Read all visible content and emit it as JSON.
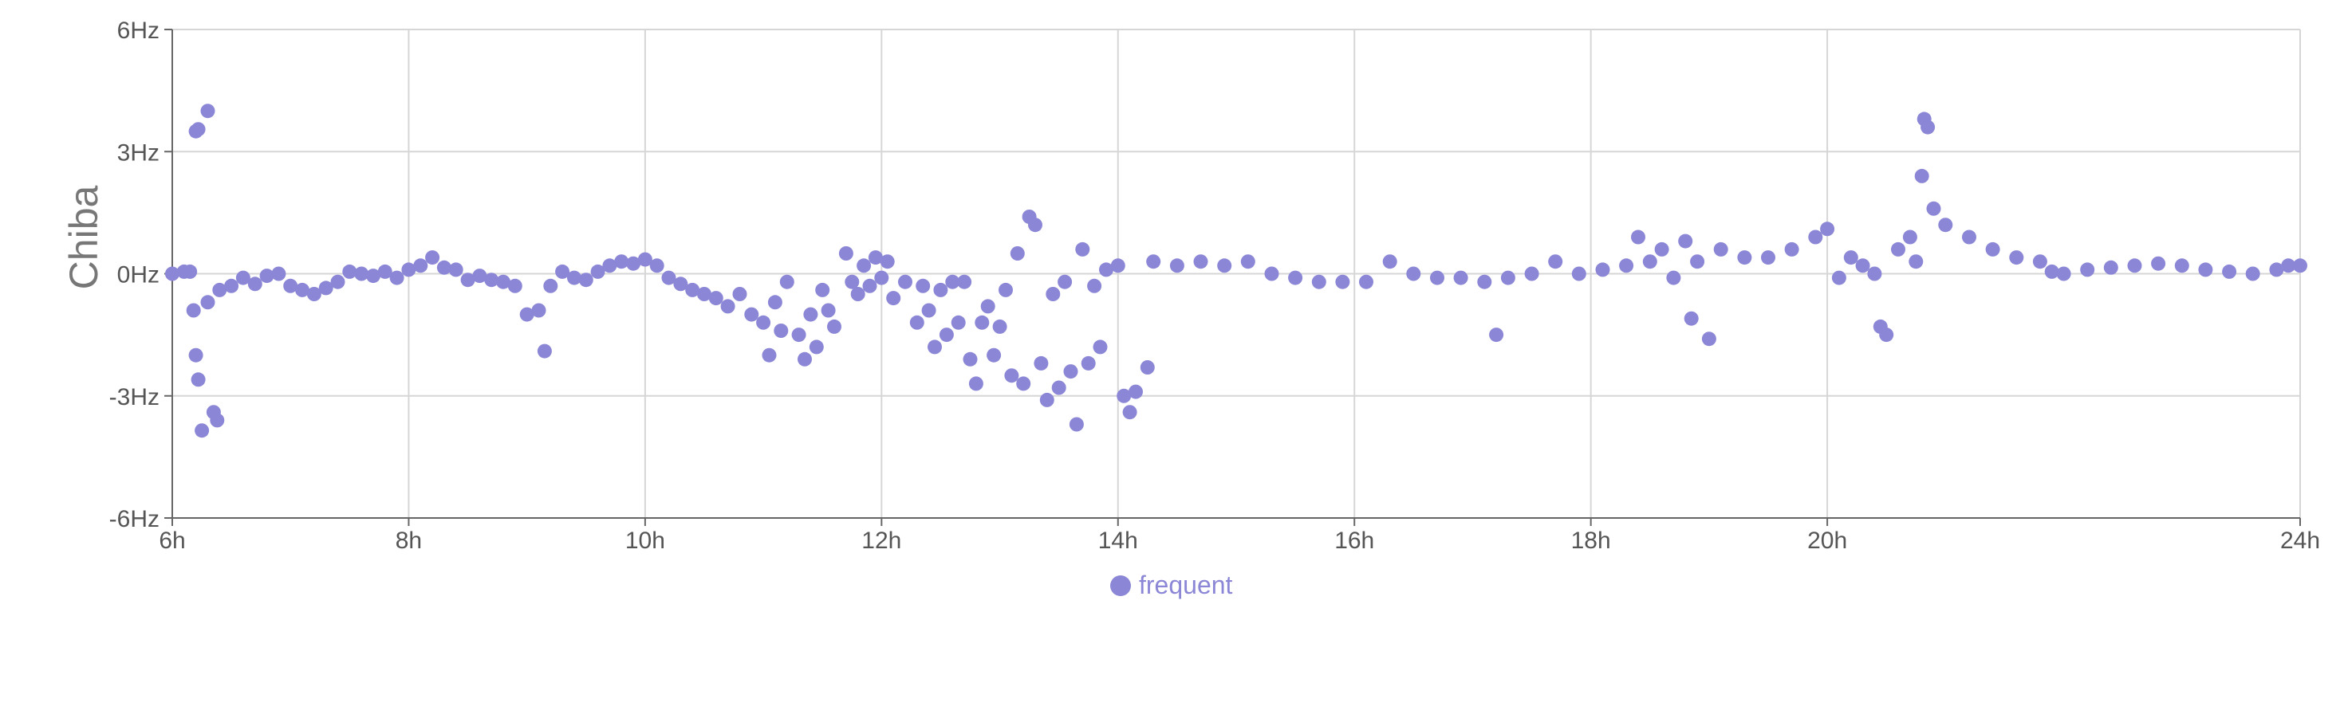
{
  "chart_data": {
    "type": "scatter",
    "title": "",
    "xlabel": "",
    "ylabel": "Chiba",
    "x_unit": "h",
    "y_unit": "Hz",
    "xlim": [
      6,
      24
    ],
    "ylim": [
      -6,
      6
    ],
    "x_ticks": [
      "6h",
      "8h",
      "10h",
      "12h",
      "14h",
      "16h",
      "18h",
      "20h",
      "24h"
    ],
    "y_ticks": [
      "6Hz",
      "3Hz",
      "0Hz",
      "-3Hz",
      "-6Hz"
    ],
    "grid": true,
    "legend_position": "bottom-center",
    "series": [
      {
        "name": "frequent",
        "color": "#8b87d6",
        "points": [
          [
            6.0,
            0.0
          ],
          [
            6.1,
            0.05
          ],
          [
            6.15,
            0.05
          ],
          [
            6.18,
            -0.9
          ],
          [
            6.2,
            -2.0
          ],
          [
            6.22,
            -2.6
          ],
          [
            6.25,
            -3.85
          ],
          [
            6.2,
            3.5
          ],
          [
            6.22,
            3.55
          ],
          [
            6.3,
            4.0
          ],
          [
            6.35,
            -3.4
          ],
          [
            6.38,
            -3.6
          ],
          [
            6.3,
            -0.7
          ],
          [
            6.4,
            -0.4
          ],
          [
            6.5,
            -0.3
          ],
          [
            6.6,
            -0.1
          ],
          [
            6.7,
            -0.25
          ],
          [
            6.8,
            -0.05
          ],
          [
            6.9,
            0.0
          ],
          [
            7.0,
            -0.3
          ],
          [
            7.1,
            -0.4
          ],
          [
            7.2,
            -0.5
          ],
          [
            7.3,
            -0.35
          ],
          [
            7.4,
            -0.2
          ],
          [
            7.5,
            0.05
          ],
          [
            7.6,
            0.0
          ],
          [
            7.7,
            -0.05
          ],
          [
            7.8,
            0.05
          ],
          [
            7.9,
            -0.1
          ],
          [
            8.0,
            0.1
          ],
          [
            8.1,
            0.2
          ],
          [
            8.2,
            0.4
          ],
          [
            8.3,
            0.15
          ],
          [
            8.4,
            0.1
          ],
          [
            8.5,
            -0.15
          ],
          [
            8.6,
            -0.05
          ],
          [
            8.7,
            -0.15
          ],
          [
            8.8,
            -0.2
          ],
          [
            8.9,
            -0.3
          ],
          [
            9.0,
            -1.0
          ],
          [
            9.1,
            -0.9
          ],
          [
            9.15,
            -1.9
          ],
          [
            9.2,
            -0.3
          ],
          [
            9.3,
            0.05
          ],
          [
            9.4,
            -0.1
          ],
          [
            9.5,
            -0.15
          ],
          [
            9.6,
            0.05
          ],
          [
            9.7,
            0.2
          ],
          [
            9.8,
            0.3
          ],
          [
            9.9,
            0.25
          ],
          [
            10.0,
            0.35
          ],
          [
            10.1,
            0.2
          ],
          [
            10.2,
            -0.1
          ],
          [
            10.3,
            -0.25
          ],
          [
            10.4,
            -0.4
          ],
          [
            10.5,
            -0.5
          ],
          [
            10.6,
            -0.6
          ],
          [
            10.7,
            -0.8
          ],
          [
            10.8,
            -0.5
          ],
          [
            10.9,
            -1.0
          ],
          [
            11.0,
            -1.2
          ],
          [
            11.05,
            -2.0
          ],
          [
            11.1,
            -0.7
          ],
          [
            11.15,
            -1.4
          ],
          [
            11.2,
            -0.2
          ],
          [
            11.3,
            -1.5
          ],
          [
            11.35,
            -2.1
          ],
          [
            11.4,
            -1.0
          ],
          [
            11.45,
            -1.8
          ],
          [
            11.5,
            -0.4
          ],
          [
            11.55,
            -0.9
          ],
          [
            11.6,
            -1.3
          ],
          [
            11.7,
            0.5
          ],
          [
            11.75,
            -0.2
          ],
          [
            11.8,
            -0.5
          ],
          [
            11.85,
            0.2
          ],
          [
            11.9,
            -0.3
          ],
          [
            11.95,
            0.4
          ],
          [
            12.0,
            -0.1
          ],
          [
            12.05,
            0.3
          ],
          [
            12.1,
            -0.6
          ],
          [
            12.2,
            -0.2
          ],
          [
            12.3,
            -1.2
          ],
          [
            12.35,
            -0.3
          ],
          [
            12.4,
            -0.9
          ],
          [
            12.45,
            -1.8
          ],
          [
            12.5,
            -0.4
          ],
          [
            12.55,
            -1.5
          ],
          [
            12.6,
            -0.2
          ],
          [
            12.65,
            -1.2
          ],
          [
            12.7,
            -0.2
          ],
          [
            12.75,
            -2.1
          ],
          [
            12.8,
            -2.7
          ],
          [
            12.85,
            -1.2
          ],
          [
            12.9,
            -0.8
          ],
          [
            12.95,
            -2.0
          ],
          [
            13.0,
            -1.3
          ],
          [
            13.05,
            -0.4
          ],
          [
            13.1,
            -2.5
          ],
          [
            13.15,
            0.5
          ],
          [
            13.2,
            -2.7
          ],
          [
            13.25,
            1.4
          ],
          [
            13.3,
            1.2
          ],
          [
            13.35,
            -2.2
          ],
          [
            13.4,
            -3.1
          ],
          [
            13.45,
            -0.5
          ],
          [
            13.5,
            -2.8
          ],
          [
            13.55,
            -0.2
          ],
          [
            13.6,
            -2.4
          ],
          [
            13.65,
            -3.7
          ],
          [
            13.7,
            0.6
          ],
          [
            13.75,
            -2.2
          ],
          [
            13.8,
            -0.3
          ],
          [
            13.85,
            -1.8
          ],
          [
            13.9,
            0.1
          ],
          [
            14.0,
            0.2
          ],
          [
            14.05,
            -3.0
          ],
          [
            14.1,
            -3.4
          ],
          [
            14.15,
            -2.9
          ],
          [
            14.25,
            -2.3
          ],
          [
            14.3,
            0.3
          ],
          [
            14.5,
            0.2
          ],
          [
            14.7,
            0.3
          ],
          [
            14.9,
            0.2
          ],
          [
            15.1,
            0.3
          ],
          [
            15.3,
            0.0
          ],
          [
            15.5,
            -0.1
          ],
          [
            15.7,
            -0.2
          ],
          [
            15.9,
            -0.2
          ],
          [
            16.1,
            -0.2
          ],
          [
            16.3,
            0.3
          ],
          [
            16.5,
            0.0
          ],
          [
            16.7,
            -0.1
          ],
          [
            16.9,
            -0.1
          ],
          [
            17.1,
            -0.2
          ],
          [
            17.2,
            -1.5
          ],
          [
            17.3,
            -0.1
          ],
          [
            17.5,
            0.0
          ],
          [
            17.7,
            0.3
          ],
          [
            17.9,
            0.0
          ],
          [
            18.1,
            0.1
          ],
          [
            18.3,
            0.2
          ],
          [
            18.4,
            0.9
          ],
          [
            18.5,
            0.3
          ],
          [
            18.6,
            0.6
          ],
          [
            18.7,
            -0.1
          ],
          [
            18.8,
            0.8
          ],
          [
            18.85,
            -1.1
          ],
          [
            18.9,
            0.3
          ],
          [
            19.0,
            -1.6
          ],
          [
            19.1,
            0.6
          ],
          [
            19.3,
            0.4
          ],
          [
            19.5,
            0.4
          ],
          [
            19.7,
            0.6
          ],
          [
            19.9,
            0.9
          ],
          [
            20.0,
            1.1
          ],
          [
            20.1,
            -0.1
          ],
          [
            20.2,
            0.4
          ],
          [
            20.3,
            0.2
          ],
          [
            20.4,
            0.0
          ],
          [
            20.45,
            -1.3
          ],
          [
            20.5,
            -1.5
          ],
          [
            20.6,
            0.6
          ],
          [
            20.7,
            0.9
          ],
          [
            20.75,
            0.3
          ],
          [
            20.8,
            2.4
          ],
          [
            20.82,
            3.8
          ],
          [
            20.85,
            3.6
          ],
          [
            20.9,
            1.6
          ],
          [
            21.0,
            1.2
          ],
          [
            21.2,
            0.9
          ],
          [
            21.4,
            0.6
          ],
          [
            21.6,
            0.4
          ],
          [
            21.8,
            0.3
          ],
          [
            21.9,
            0.05
          ],
          [
            22.0,
            0.0
          ],
          [
            22.2,
            0.1
          ],
          [
            22.4,
            0.15
          ],
          [
            22.6,
            0.2
          ],
          [
            22.8,
            0.25
          ],
          [
            23.0,
            0.2
          ],
          [
            23.2,
            0.1
          ],
          [
            23.4,
            0.05
          ],
          [
            23.6,
            0.0
          ],
          [
            23.8,
            0.1
          ],
          [
            23.9,
            0.2
          ],
          [
            24.0,
            0.2
          ]
        ]
      }
    ]
  }
}
